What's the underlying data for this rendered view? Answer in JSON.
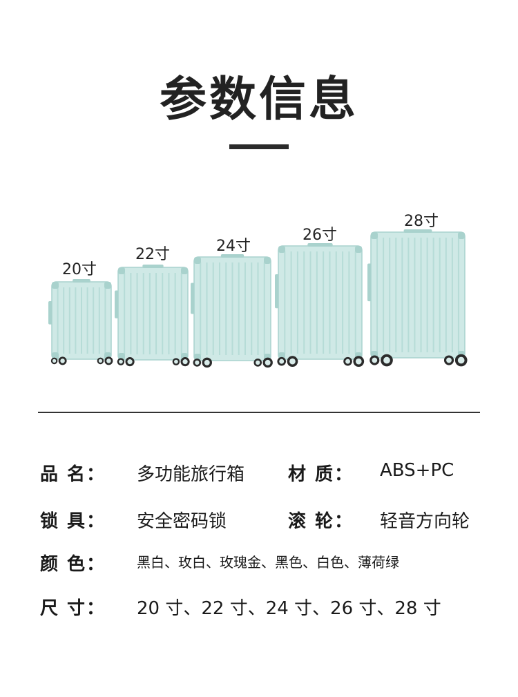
{
  "header": {
    "title": "参数信息"
  },
  "suitcases": [
    {
      "label": "20寸"
    },
    {
      "label": "22寸"
    },
    {
      "label": "24寸"
    },
    {
      "label": "26寸"
    },
    {
      "label": "28寸"
    }
  ],
  "colors": {
    "shell": "#cfe9e6",
    "shell_dark": "#a9d2cd",
    "rib": "#b6dcd7",
    "wheel": "#2b2b2b",
    "hub": "#d9ecea"
  },
  "specs": {
    "name_label": "品 名：",
    "name_value": "多功能旅行箱",
    "material_label": "材 质：",
    "material_value": "ABS+PC",
    "lock_label": "锁 具：",
    "lock_value": "安全密码锁",
    "wheel_label": "滚 轮：",
    "wheel_value": "轻音方向轮",
    "color_label": "颜 色：",
    "color_value": "黑白、玫白、玫瑰金、黑色、白色、薄荷绿",
    "size_label": "尺 寸：",
    "size_value": "20 寸、22 寸、24 寸、26 寸、28 寸"
  }
}
